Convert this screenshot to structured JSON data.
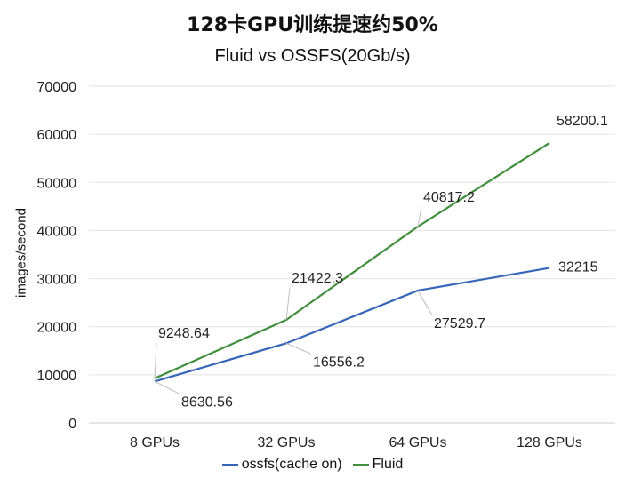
{
  "chart_data": {
    "type": "line",
    "title": "128卡GPU训练提速约50%",
    "subtitle": "Fluid vs OSSFS(20Gb/s)",
    "xlabel": "",
    "ylabel": "images/second",
    "categories": [
      "8 GPUs",
      "32 GPUs",
      "64 GPUs",
      "128 GPUs"
    ],
    "ylim": [
      0,
      70000
    ],
    "yticks": [
      0,
      10000,
      20000,
      30000,
      40000,
      50000,
      60000,
      70000
    ],
    "grid": true,
    "legend_position": "bottom",
    "series": [
      {
        "name": "ossfs(cache on)",
        "color": "#3566b8",
        "values": [
          8630.56,
          16556.2,
          27529.7,
          32215
        ],
        "labels": [
          "8630.56",
          "16556.2",
          "27529.7",
          "32215"
        ]
      },
      {
        "name": "Fluid",
        "color": "#3f8f3a",
        "values": [
          9248.64,
          21422.3,
          40817.2,
          58200.1
        ],
        "labels": [
          "9248.64",
          "21422.3",
          "40817.2",
          "58200.1"
        ]
      }
    ]
  }
}
